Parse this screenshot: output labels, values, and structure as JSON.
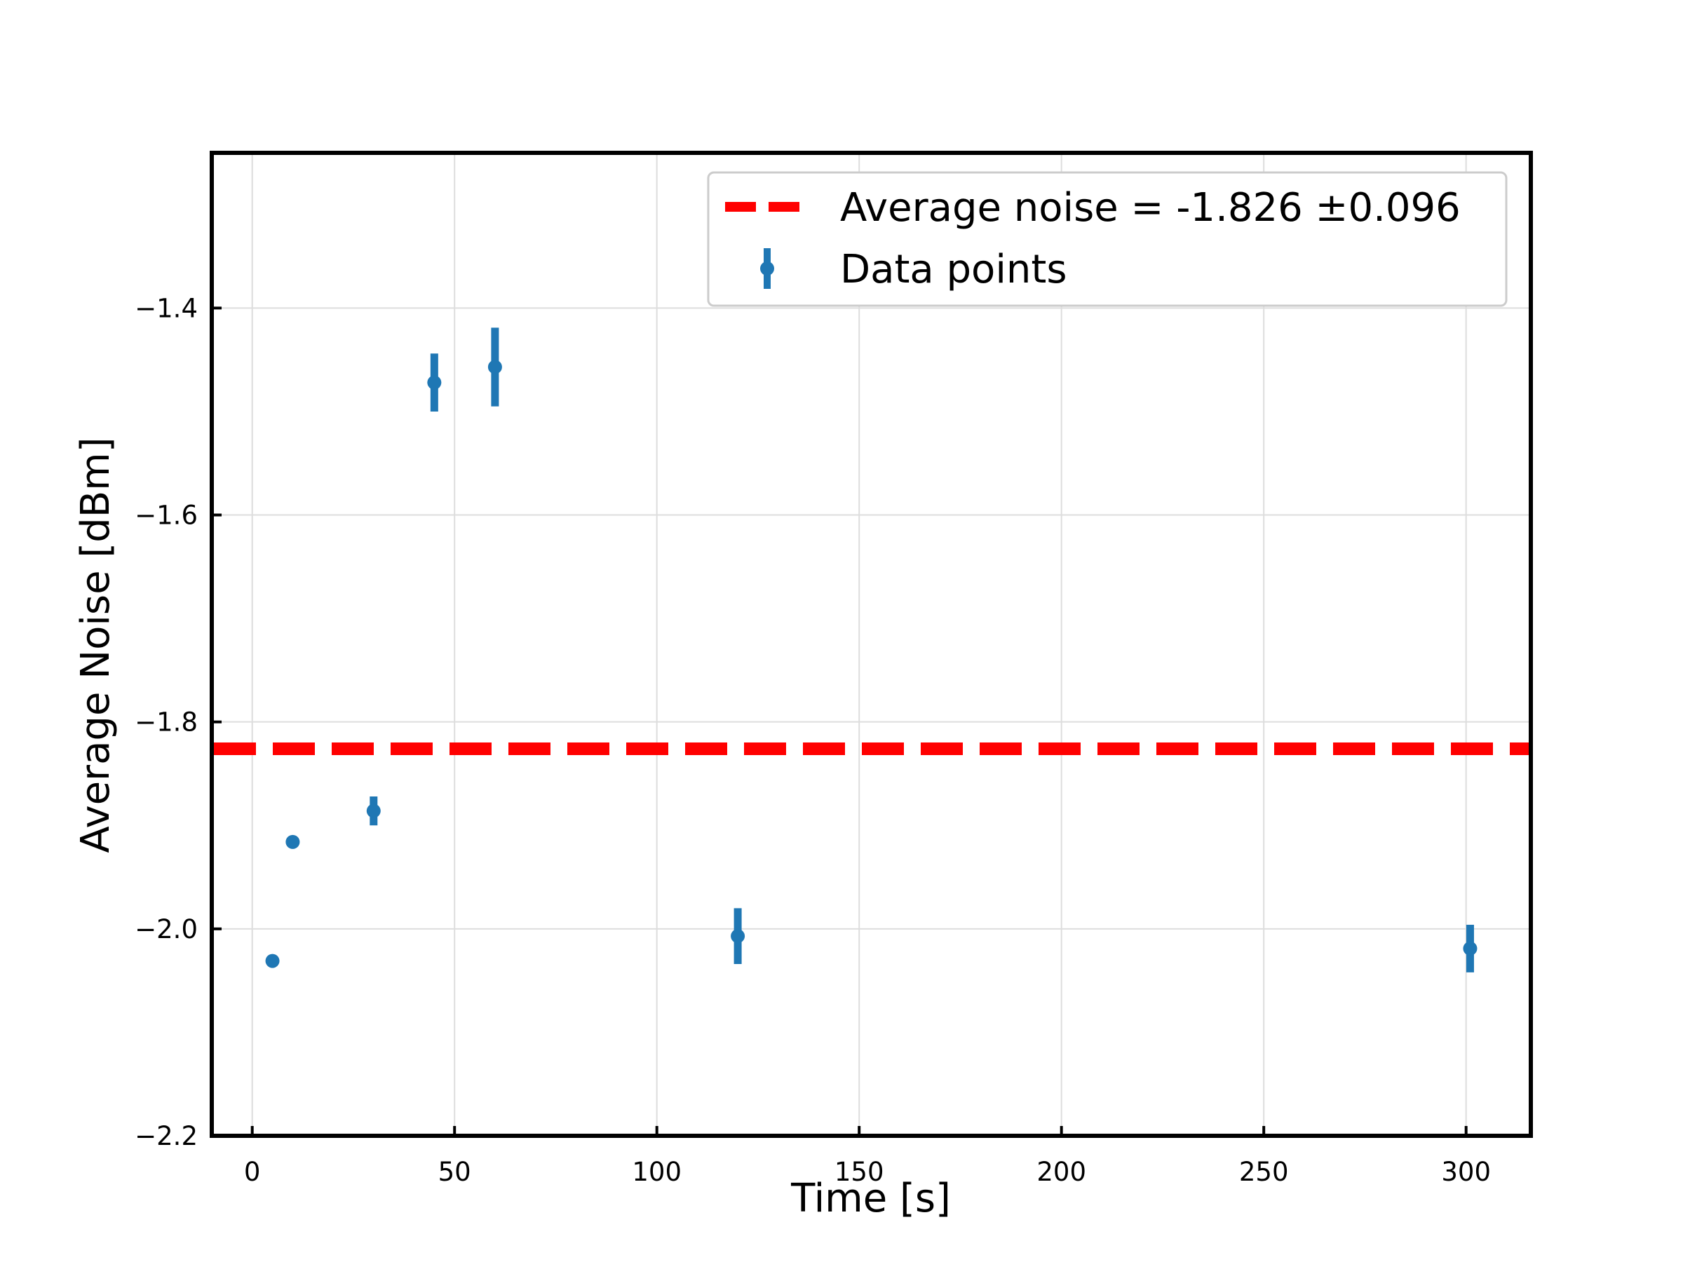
{
  "chart_data": {
    "type": "scatter",
    "xlabel": "Time [s]",
    "ylabel": "Average Noise [dBm]",
    "xlim": [
      -10,
      316
    ],
    "ylim": [
      -2.2,
      -1.25
    ],
    "xticks": [
      0,
      50,
      100,
      150,
      200,
      250,
      300
    ],
    "yticks": [
      -2.2,
      -2.0,
      -1.8,
      -1.6,
      -1.4
    ],
    "ytick_labels": [
      "−2.2",
      "−2.0",
      "−1.8",
      "−1.6",
      "−1.4"
    ],
    "grid": true,
    "legend_position": "top-right",
    "series": [
      {
        "name": "Data points",
        "kind": "errorbar",
        "color": "#1f77b4",
        "points": [
          {
            "x": 5,
            "y": -2.031,
            "err": 0.0
          },
          {
            "x": 10,
            "y": -1.916,
            "err": 0.0
          },
          {
            "x": 30,
            "y": -1.886,
            "err": 0.014
          },
          {
            "x": 45,
            "y": -1.472,
            "err": 0.028
          },
          {
            "x": 60,
            "y": -1.457,
            "err": 0.038
          },
          {
            "x": 120,
            "y": -2.007,
            "err": 0.027
          },
          {
            "x": 301,
            "y": -2.019,
            "err": 0.023
          }
        ]
      },
      {
        "name": "Average noise = -1.826 ±0.096",
        "kind": "hline",
        "color": "#ff0000",
        "y": -1.826
      }
    ]
  }
}
